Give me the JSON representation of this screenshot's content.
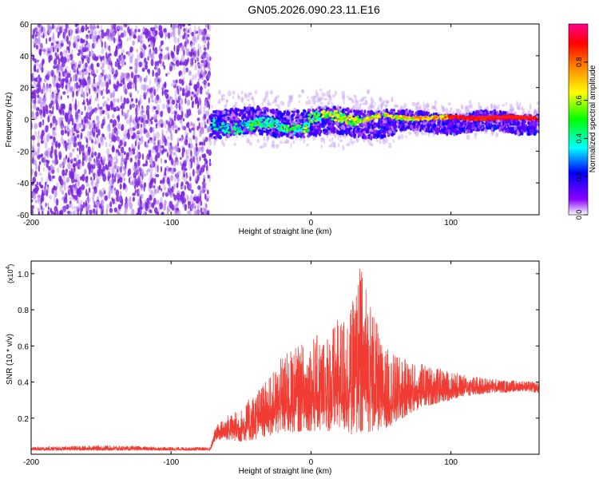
{
  "title": "GN05.2026.090.23.11.E16",
  "colors": {
    "snr_line": "#f03c32",
    "dot_purple": "#7a22e0",
    "dot_light": "#c9a6f2",
    "background": "#ffffff"
  },
  "chart_data": [
    {
      "type": "heatmap",
      "name": "spectrogram",
      "xlabel": "Height of straight line (km)",
      "ylabel": "Frequency (Hz)",
      "xlim": [
        -200,
        163
      ],
      "ylim": [
        -60,
        60
      ],
      "xticks": [
        -200,
        -100,
        0,
        100
      ],
      "yticks": [
        -60,
        -40,
        -20,
        0,
        20,
        40,
        60
      ],
      "x_tick_labels": [
        "-200",
        "-100",
        "0",
        "100"
      ],
      "y_tick_labels": [
        "-60",
        "-40",
        "-20",
        "0",
        "20",
        "40",
        "60"
      ],
      "noise_region_x": [
        -200,
        -72
      ],
      "signal_band": {
        "x_start": -72,
        "x_end": 163,
        "center_hz": 0,
        "half_width_hz": 6
      },
      "colorbar": {
        "label": "Normalized spectral amplitude",
        "range": [
          0,
          1
        ],
        "ticks": [
          0.0,
          0.2,
          0.4,
          0.6,
          0.8
        ],
        "tick_labels": [
          "0.0",
          "0.2",
          "0.4",
          "0.6",
          "0.8"
        ],
        "colormap": [
          "#ffffff",
          "#7a00ff",
          "#0000ff",
          "#00ffff",
          "#00ff00",
          "#ffff00",
          "#ff8000",
          "#ff0000",
          "#ff0090"
        ]
      }
    },
    {
      "type": "line",
      "name": "snr",
      "xlabel": "Height of straight line (km)",
      "ylabel": "SNR (10 * v/v)",
      "multiplier": "(x10",
      "multiplier_exp": "4",
      "multiplier_close": ")",
      "xlim": [
        -200,
        163
      ],
      "ylim": [
        0,
        1.07
      ],
      "xticks": [
        -200,
        -100,
        0,
        100
      ],
      "yticks": [
        0.2,
        0.4,
        0.6,
        0.8,
        1.0
      ],
      "x_tick_labels": [
        "-200",
        "-100",
        "0",
        "100"
      ],
      "y_tick_labels": [
        "0.2",
        "0.4",
        "0.6",
        "0.8",
        "1.0"
      ],
      "envelope": {
        "x": [
          -200,
          -150,
          -100,
          -72,
          -68,
          -60,
          -50,
          -40,
          -30,
          -20,
          -10,
          0,
          10,
          20,
          30,
          35,
          40,
          45,
          50,
          60,
          70,
          80,
          90,
          100,
          110,
          120,
          130,
          140,
          150,
          163
        ],
        "low": [
          0.02,
          0.02,
          0.02,
          0.02,
          0.08,
          0.08,
          0.07,
          0.08,
          0.1,
          0.12,
          0.12,
          0.13,
          0.12,
          0.15,
          0.1,
          0.08,
          0.12,
          0.13,
          0.13,
          0.17,
          0.22,
          0.26,
          0.28,
          0.3,
          0.32,
          0.33,
          0.34,
          0.34,
          0.35,
          0.34
        ],
        "high": [
          0.04,
          0.05,
          0.04,
          0.04,
          0.16,
          0.22,
          0.25,
          0.35,
          0.42,
          0.55,
          0.6,
          0.65,
          0.68,
          0.75,
          0.85,
          1.07,
          0.95,
          0.8,
          0.62,
          0.55,
          0.52,
          0.5,
          0.48,
          0.46,
          0.44,
          0.43,
          0.42,
          0.41,
          0.41,
          0.4
        ]
      }
    }
  ]
}
